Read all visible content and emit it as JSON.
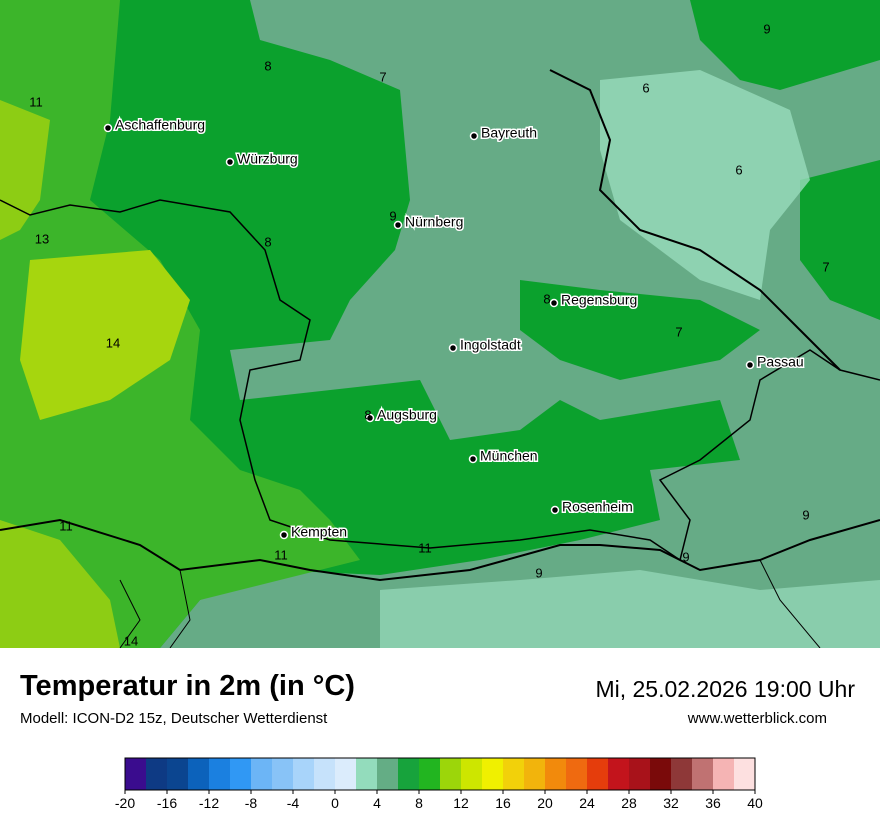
{
  "title": "Temperatur in 2m (in °C)",
  "subtitle": "Modell: ICON-D2 15z, Deutscher Wetterdienst",
  "datetime": "Mi, 25.02.2026 19:00 Uhr",
  "website": "www.wetterblick.com",
  "map": {
    "cities": [
      "Aschaffenburg",
      "Würzburg",
      "Bayreuth",
      "Nürnberg",
      "Regensburg",
      "Ingolstadt",
      "Passau",
      "Augsburg",
      "München",
      "Rosenheim",
      "Kempten"
    ],
    "contour_labels": [
      11,
      8,
      7,
      9,
      6,
      6,
      13,
      9,
      8,
      7,
      8,
      7,
      14,
      8,
      11,
      9,
      11,
      11,
      9,
      9,
      14
    ]
  },
  "colorbar": {
    "ticks": [
      -20,
      -16,
      -12,
      -8,
      -4,
      0,
      4,
      8,
      12,
      16,
      20,
      24,
      28,
      32,
      36,
      40
    ],
    "colors": [
      "#3a0c8e",
      "#0e3a84",
      "#0b4590",
      "#0c62bb",
      "#1b80e0",
      "#3098f4",
      "#6cb5f6",
      "#88c3f7",
      "#a8d4fa",
      "#c6e2fb",
      "#dbecfc",
      "#93dcbc",
      "#64ad85",
      "#17a33c",
      "#22b520",
      "#9cd60a",
      "#cde600",
      "#f0f000",
      "#f2d10a",
      "#f2b40c",
      "#f28a0c",
      "#ef6a10",
      "#e53d0c",
      "#c3141c",
      "#a8121a",
      "#7a0a0a",
      "#8e3838",
      "#c07272",
      "#f5b4b4",
      "#fde0e0"
    ]
  }
}
